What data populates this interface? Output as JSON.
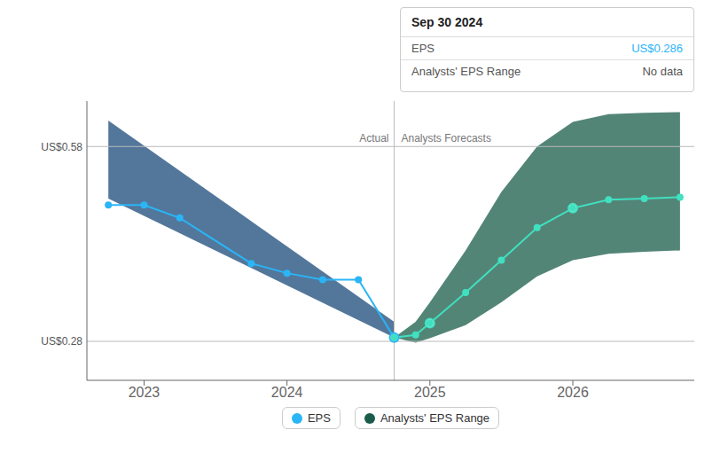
{
  "chart_data": {
    "type": "line",
    "xlim": [
      2022.6,
      2026.85
    ],
    "xticks": [
      2023,
      2024,
      2025,
      2026
    ],
    "ylim": [
      0.22,
      0.65
    ],
    "tick_labels": "x",
    "grid": false,
    "legend": "bottom",
    "series": [
      {
        "name": "EPS",
        "type": "line",
        "color": "#2ab5f6",
        "marker": "o",
        "x": [
          2022.75,
          2023.0,
          2023.25,
          2023.75,
          2024.0,
          2024.25,
          2024.5,
          2024.75
        ],
        "values": [
          0.49,
          0.49,
          0.47,
          0.4,
          0.385,
          0.375,
          0.375,
          0.286
        ]
      },
      {
        "type": "line",
        "color": "#40e0c0",
        "marker": "o",
        "x": [
          2024.75,
          2024.9,
          2025.0,
          2025.25,
          2025.5,
          2025.75,
          2026.0,
          2026.25,
          2026.5,
          2026.75
        ],
        "values": [
          0.286,
          0.29,
          0.308,
          0.355,
          0.405,
          0.455,
          0.485,
          0.498,
          0.5,
          0.502
        ]
      },
      {
        "name": "Analysts' EPS Range",
        "type": "area",
        "color": "#1a5c4a",
        "x": [
          2024.75,
          2024.9,
          2025.0,
          2025.25,
          2025.5,
          2025.75,
          2026.0,
          2026.25,
          2026.5,
          2026.75
        ],
        "upper": [
          0.286,
          0.31,
          0.34,
          0.42,
          0.51,
          0.58,
          0.618,
          0.63,
          0.632,
          0.633
        ],
        "lower": [
          0.286,
          0.278,
          0.285,
          0.305,
          0.34,
          0.38,
          0.405,
          0.415,
          0.418,
          0.42
        ]
      },
      {
        "type": "area",
        "color": "#1a4a7a",
        "x": [
          2022.75,
          2024.75
        ],
        "upper": [
          0.62,
          0.31
        ],
        "lower": [
          0.5,
          0.286
        ]
      }
    ],
    "highlights": [
      {
        "x": 2024.75,
        "y": 0.286,
        "color": "#2ab5f6"
      },
      {
        "x": 2025.0,
        "y": 0.308,
        "color": "#40e0c0"
      },
      {
        "x": 2026.0,
        "y": 0.485,
        "color": "#40e0c0"
      }
    ],
    "annotations": [
      {
        "y": 0.58,
        "text": "US$0.58"
      },
      {
        "y": 0.28,
        "text": "US$0.28"
      },
      {
        "x": 2024.75,
        "text_left": "Actual",
        "text_right": "Analysts Forecasts"
      }
    ],
    "tooltip": {
      "title": "Sep 30 2024",
      "rows": [
        {
          "label": "EPS",
          "value": "US$0.286"
        },
        {
          "label": "Analysts' EPS Range",
          "value": "No data"
        }
      ]
    }
  }
}
